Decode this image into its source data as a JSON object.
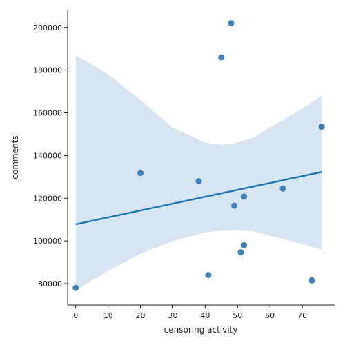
{
  "chart_data": {
    "type": "scatter",
    "xlabel": "censoring activity",
    "ylabel": "comments",
    "xlim": [
      -2.5,
      80
    ],
    "ylim": [
      70000,
      208000
    ],
    "xticks": [
      0,
      10,
      20,
      30,
      40,
      50,
      60,
      70
    ],
    "yticks": [
      80000,
      100000,
      120000,
      140000,
      160000,
      180000,
      200000
    ],
    "grid": false,
    "legend": "none",
    "colors": {
      "points": "#3a7ab5",
      "line": "#1f77b4",
      "band": "#c9dced"
    },
    "points": [
      {
        "x": 0,
        "y": 78000
      },
      {
        "x": 20,
        "y": 131800
      },
      {
        "x": 38,
        "y": 128000
      },
      {
        "x": 41,
        "y": 84000
      },
      {
        "x": 45,
        "y": 186000
      },
      {
        "x": 48,
        "y": 202000
      },
      {
        "x": 49,
        "y": 116500
      },
      {
        "x": 51,
        "y": 94700
      },
      {
        "x": 52,
        "y": 120800
      },
      {
        "x": 52,
        "y": 98000
      },
      {
        "x": 64,
        "y": 124500
      },
      {
        "x": 73,
        "y": 81500
      },
      {
        "x": 76,
        "y": 153500
      }
    ],
    "regression": {
      "x": [
        0,
        76
      ],
      "y": [
        107800,
        132300
      ]
    },
    "confidence_band": {
      "x": [
        0,
        10,
        20,
        30,
        40,
        45,
        50,
        55,
        60,
        70,
        76
      ],
      "upper": [
        187000,
        178000,
        166000,
        153000,
        146000,
        145000,
        146000,
        148500,
        153000,
        162000,
        168000
      ],
      "lower": [
        77000,
        86000,
        94000,
        100000,
        104000,
        104800,
        105000,
        104500,
        102500,
        98500,
        96000
      ]
    }
  }
}
